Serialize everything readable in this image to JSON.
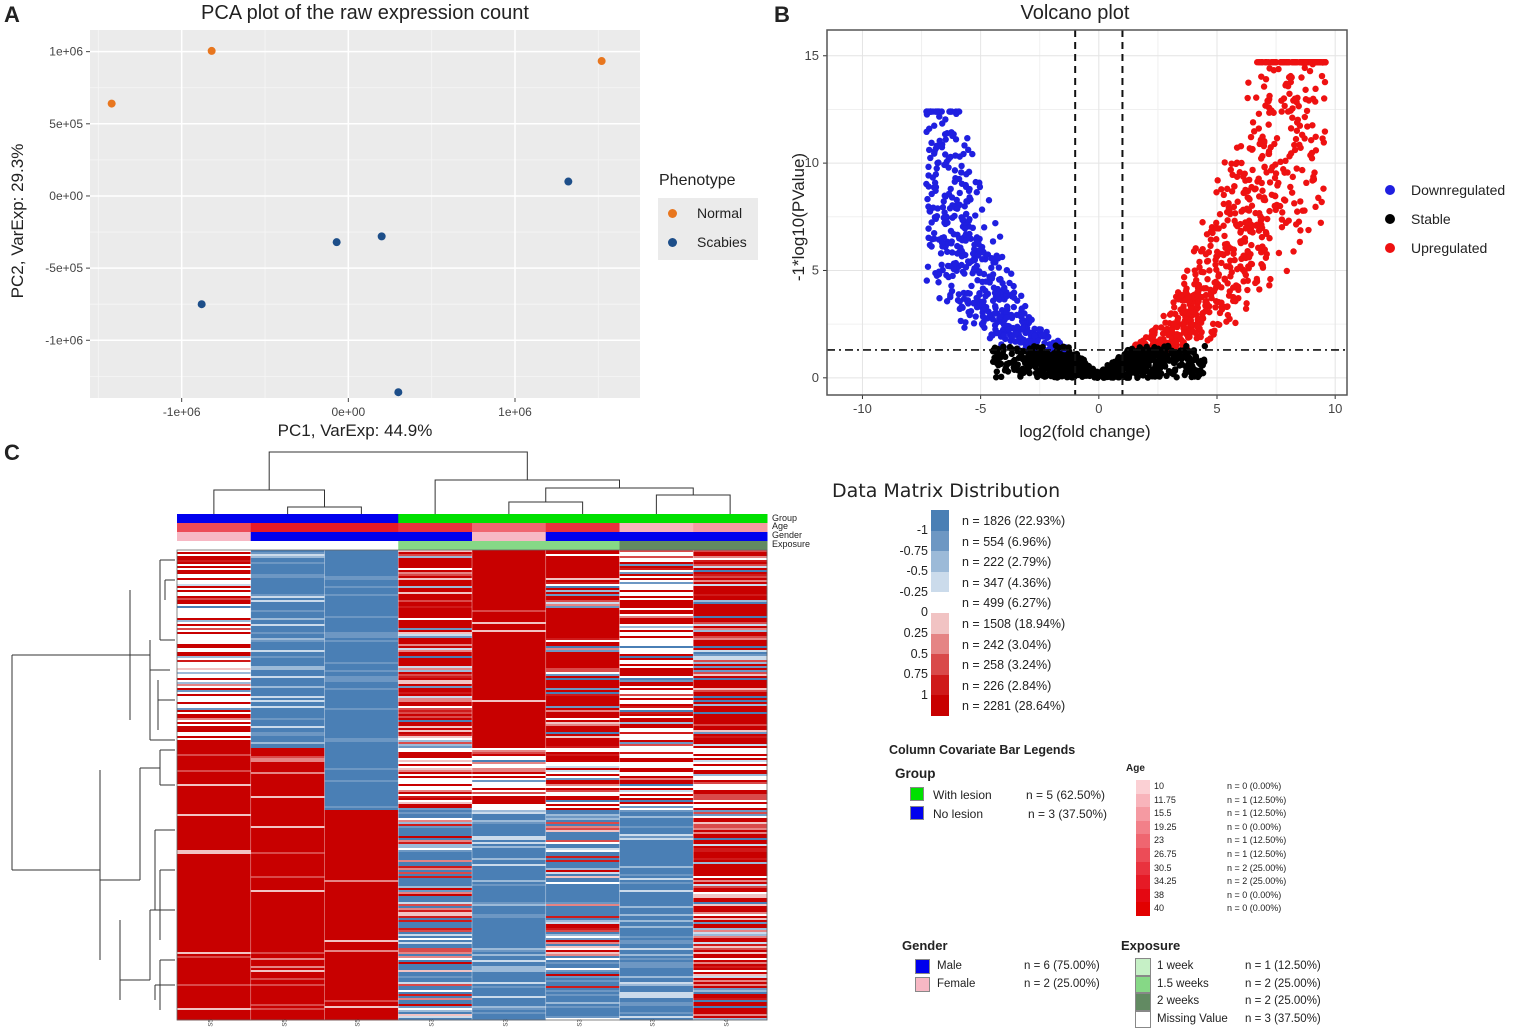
{
  "panels": {
    "a": "A",
    "b": "B",
    "c": "C"
  },
  "chart_data": [
    {
      "type": "scatter",
      "title": "PCA plot of the raw expression count",
      "xlabel": "PC1, VarExp: 44.9%",
      "ylabel": "PC2, VarExp: 29.3%",
      "xlim": [
        -1550000,
        1750000
      ],
      "ylim": [
        -1400000,
        1150000
      ],
      "xticks": [
        -1000000,
        0,
        1000000
      ],
      "xtick_labels": [
        "-1e+06",
        "0e+00",
        "1e+06"
      ],
      "yticks": [
        1000000,
        500000,
        0,
        -500000,
        -1000000
      ],
      "ytick_labels": [
        "1e+06",
        "5e+05",
        "0e+00",
        "-5e+05",
        "-1e+06"
      ],
      "legend_title": "Phenotype",
      "series": [
        {
          "name": "Normal",
          "color": "#e8761e",
          "points": [
            [
              -1420000,
              640000
            ],
            [
              -820000,
              1005000
            ],
            [
              1520000,
              935000
            ]
          ]
        },
        {
          "name": "Scabies",
          "color": "#1d4e89",
          "points": [
            [
              -880000,
              -750000
            ],
            [
              -70000,
              -320000
            ],
            [
              200000,
              -280000
            ],
            [
              300000,
              -1360000
            ],
            [
              1320000,
              100000
            ]
          ]
        }
      ]
    },
    {
      "type": "scatter",
      "title": "Volcano plot",
      "xlabel": "log2(fold change)",
      "ylabel": "-1*log10(PValue)",
      "xlim": [
        -11.5,
        10.5
      ],
      "ylim": [
        -0.8,
        16.2
      ],
      "xticks": [
        -10,
        -5,
        0,
        5,
        10
      ],
      "xtick_labels": [
        "-10",
        "-5",
        "0",
        "5",
        "10"
      ],
      "yticks": [
        0,
        5,
        10,
        15
      ],
      "ytick_labels": [
        "0",
        "5",
        "10",
        "15"
      ],
      "fc_cutoff": [
        -1,
        1
      ],
      "p_cutoff": 1.3,
      "series": [
        {
          "name": "Downregulated",
          "color": "#1f1fe0"
        },
        {
          "name": "Stable",
          "color": "#000000"
        },
        {
          "name": "Upregulated",
          "color": "#ee1111"
        }
      ]
    },
    {
      "type": "heatmap",
      "title": "Data Matrix Distribution",
      "columns": 8,
      "covariate_rows": [
        "Group",
        "Age",
        "Gender",
        "Exposure"
      ],
      "column_labels": [
        "S5",
        "S5",
        "S5",
        "S3",
        "S3",
        "S3",
        "S3",
        "S4"
      ],
      "color_scale": [
        {
          "tick": "-1",
          "label": "n = 1826 (22.93%)",
          "color": "#4a7fb5"
        },
        {
          "tick": "-0.75",
          "label": "n = 554 (6.96%)",
          "color": "#6d97c3"
        },
        {
          "tick": "-0.5",
          "label": "n = 222 (2.79%)",
          "color": "#9cbad8"
        },
        {
          "tick": "-0.25",
          "label": "n = 347 (4.36%)",
          "color": "#cbdbeb"
        },
        {
          "tick": "0",
          "label": "n = 499 (6.27%)",
          "color": "#ffffff"
        },
        {
          "tick": "0.25",
          "label": "n = 1508 (18.94%)",
          "color": "#f1c3c3"
        },
        {
          "tick": "0.5",
          "label": "n = 242 (3.04%)",
          "color": "#e58484"
        },
        {
          "tick": "0.75",
          "label": "n = 258 (3.24%)",
          "color": "#d94a4a"
        },
        {
          "tick": "1",
          "label": "n = 226 (2.84%)",
          "color": "#cf1a1a"
        },
        {
          "tick": "",
          "label": "n = 2281 (28.64%)",
          "color": "#c80000"
        }
      ]
    }
  ],
  "covariates": {
    "title": "Column Covariate Bar Legends",
    "group": {
      "title": "Group",
      "items": [
        {
          "label": "With lesion",
          "n": "n = 5 (62.50%)",
          "color": "#00e000"
        },
        {
          "label": "No lesion",
          "n": "n = 3 (37.50%)",
          "color": "#0000ee"
        }
      ]
    },
    "age": {
      "title": "Age",
      "items": [
        {
          "label": "10",
          "n": "n = 0 (0.00%)",
          "color": "#fbd0d4"
        },
        {
          "label": "11.75",
          "n": "n = 1 (12.50%)",
          "color": "#f8b4bb"
        },
        {
          "label": "15.5",
          "n": "n = 1 (12.50%)",
          "color": "#f59aa2"
        },
        {
          "label": "19.25",
          "n": "n = 0 (0.00%)",
          "color": "#f28089"
        },
        {
          "label": "23",
          "n": "n = 1 (12.50%)",
          "color": "#ef6670"
        },
        {
          "label": "26.75",
          "n": "n = 1 (12.50%)",
          "color": "#ec4c57"
        },
        {
          "label": "30.5",
          "n": "n = 2 (25.00%)",
          "color": "#e9323e"
        },
        {
          "label": "34.25",
          "n": "n = 2 (25.00%)",
          "color": "#e61a26"
        },
        {
          "label": "38",
          "n": "n = 0 (0.00%)",
          "color": "#e40812"
        },
        {
          "label": "40",
          "n": "n = 0 (0.00%)",
          "color": "#e20000"
        }
      ]
    },
    "gender": {
      "title": "Gender",
      "items": [
        {
          "label": "Male",
          "n": "n = 6 (75.00%)",
          "color": "#0000ee"
        },
        {
          "label": "Female",
          "n": "n = 2 (25.00%)",
          "color": "#f7b8c4"
        }
      ]
    },
    "exposure": {
      "title": "Exposure",
      "items": [
        {
          "label": "1 week",
          "n": "n = 1 (12.50%)",
          "color": "#c6f0c6"
        },
        {
          "label": "1.5 weeks",
          "n": "n = 2 (25.00%)",
          "color": "#86d886"
        },
        {
          "label": "2 weeks",
          "n": "n = 2 (25.00%)",
          "color": "#628a62"
        },
        {
          "label": "Missing Value",
          "n": "n = 3 (37.50%)",
          "color": "#ffffff"
        }
      ]
    }
  }
}
